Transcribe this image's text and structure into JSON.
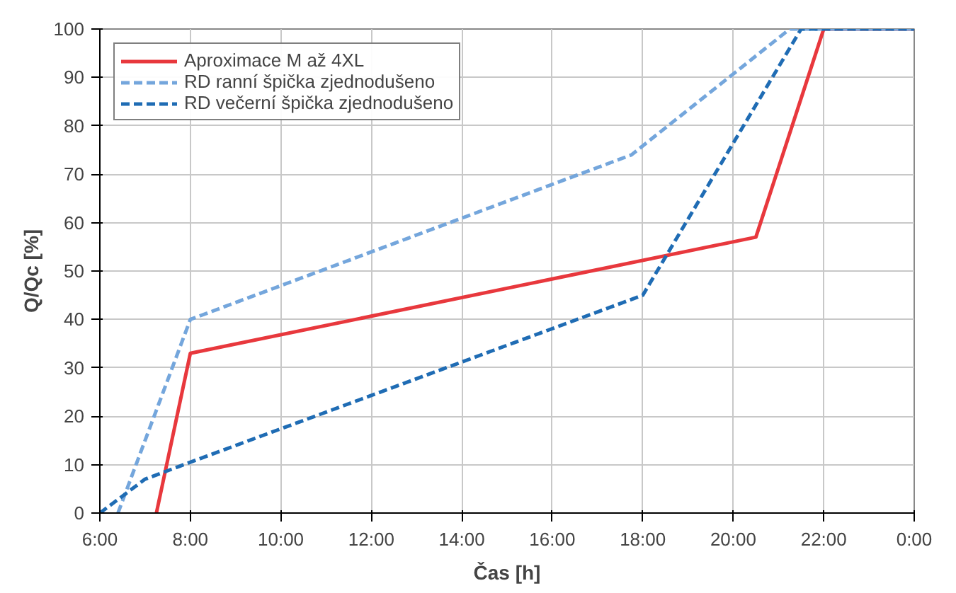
{
  "chart_data": {
    "type": "line",
    "xlabel": "Čas [h]",
    "ylabel": "Q/Qc [%]",
    "xlim": [
      6,
      24
    ],
    "ylim": [
      0,
      100
    ],
    "xticks": [
      {
        "value": 6,
        "label": "6:00"
      },
      {
        "value": 8,
        "label": "8:00"
      },
      {
        "value": 10,
        "label": "10:00"
      },
      {
        "value": 12,
        "label": "12:00"
      },
      {
        "value": 14,
        "label": "14:00"
      },
      {
        "value": 16,
        "label": "16:00"
      },
      {
        "value": 18,
        "label": "18:00"
      },
      {
        "value": 20,
        "label": "20:00"
      },
      {
        "value": 22,
        "label": "22:00"
      },
      {
        "value": 24,
        "label": "0:00"
      }
    ],
    "yticks": [
      0,
      10,
      20,
      30,
      40,
      50,
      60,
      70,
      80,
      90,
      100
    ],
    "grid": true,
    "legend": "top left",
    "marker": "none",
    "series": [
      {
        "name": "Aproximace M až 4XL",
        "color": "#e8383d",
        "line_style": "solid",
        "x": [
          7.25,
          8,
          20.5,
          22,
          24
        ],
        "values": [
          0,
          33,
          57,
          100,
          100
        ]
      },
      {
        "name": "RD ranní špička zjednodušeno",
        "color": "#74a6dc",
        "line_style": "dashed",
        "x": [
          6.4,
          8,
          17.75,
          21.25,
          24
        ],
        "values": [
          0,
          40,
          74,
          100,
          100
        ]
      },
      {
        "name": "RD večerní špička zjednodušeno",
        "color": "#1f6cb4",
        "line_style": "dashed",
        "x": [
          6,
          7,
          8,
          18,
          21.5,
          24
        ],
        "values": [
          0,
          7,
          10.5,
          45,
          100,
          100
        ]
      }
    ]
  }
}
